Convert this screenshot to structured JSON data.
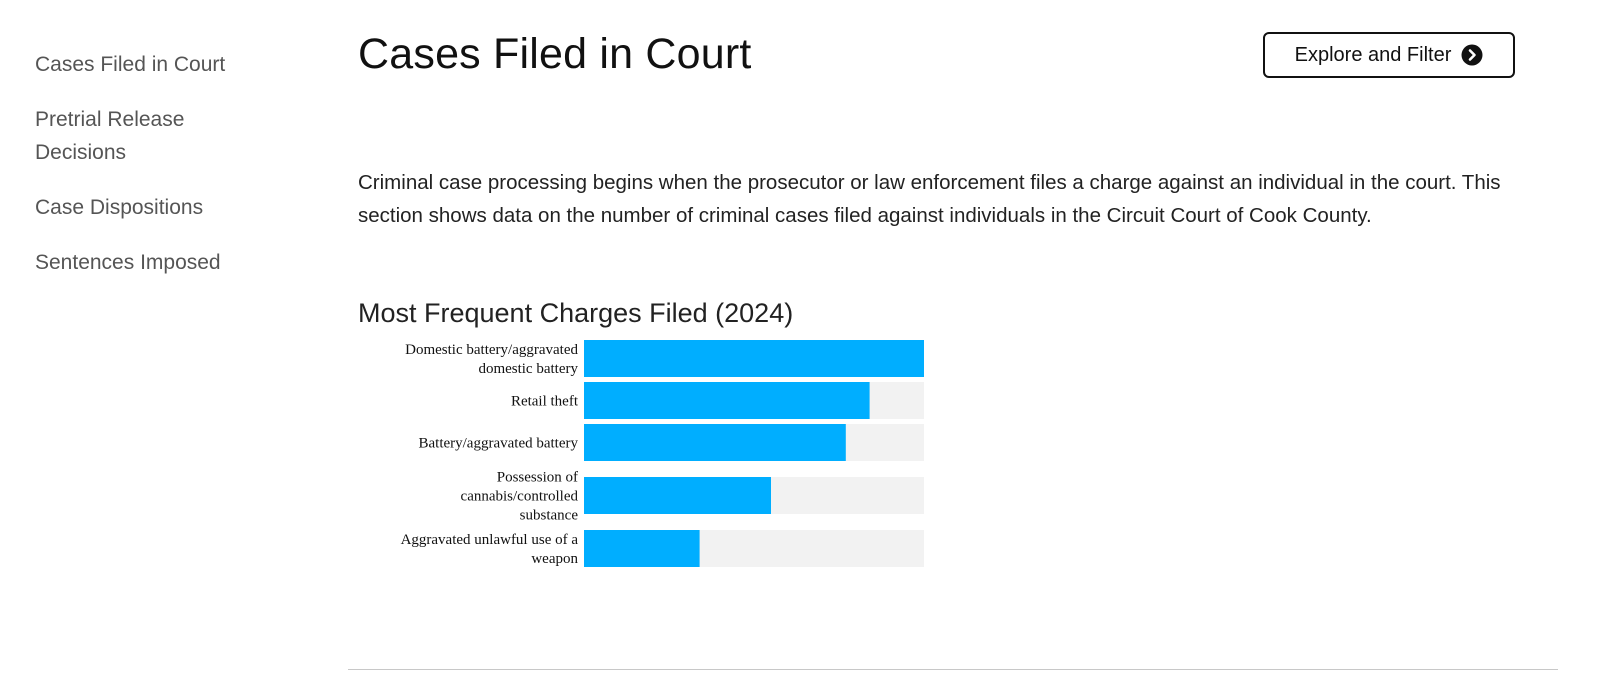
{
  "sidebar": {
    "items": [
      {
        "label": "Cases Filed in Court"
      },
      {
        "label": "Pretrial Release Decisions"
      },
      {
        "label": "Case Dispositions"
      },
      {
        "label": "Sentences Imposed"
      }
    ]
  },
  "main": {
    "title": "Cases Filed in Court",
    "explore_button_label": "Explore and Filter",
    "intro": "Criminal case processing begins when the prosecutor or law enforcement files a charge against an individual in the court. This section shows data on the number of criminal cases filed against individuals in the Circuit Court of Cook County.",
    "chart_heading": "Most Frequent Charges Filed (2024)"
  },
  "colors": {
    "bar": "#00aeff",
    "track": "#f2f2f2"
  },
  "icons": {
    "explore": "arrow-circle-right-icon"
  },
  "chart_data": {
    "type": "bar",
    "orientation": "horizontal",
    "title": "Most Frequent Charges Filed (2024)",
    "categories": [
      [
        "Domestic battery/aggravated",
        "domestic battery"
      ],
      [
        "Retail theft"
      ],
      [
        "Battery/aggravated battery"
      ],
      [
        "Possession of",
        "cannabis/controlled",
        "substance"
      ],
      [
        "Aggravated unlawful use of a",
        "weapon"
      ]
    ],
    "values": [
      100,
      84,
      77,
      55,
      34
    ],
    "xlim": [
      0,
      100
    ],
    "grid": false,
    "xlabel": "",
    "ylabel": ""
  }
}
